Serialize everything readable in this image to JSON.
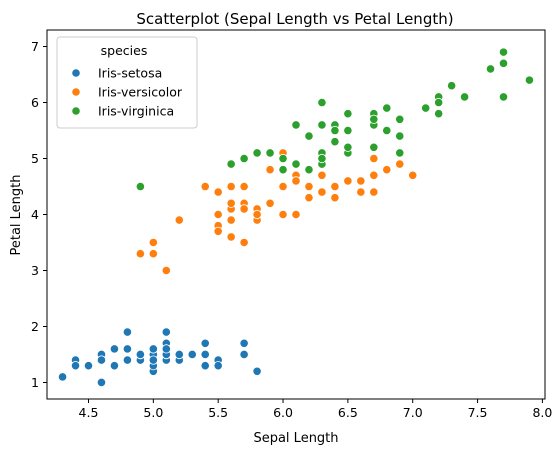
{
  "chart_data": {
    "type": "scatter",
    "title": "Scatterplot (Sepal Length vs Petal Length)",
    "xlabel": "Sepal Length",
    "ylabel": "Petal Length",
    "xlim": [
      4.18,
      8.02
    ],
    "ylim": [
      0.705,
      7.295
    ],
    "xticks": [
      4.5,
      5.0,
      5.5,
      6.0,
      6.5,
      7.0,
      7.5,
      8.0
    ],
    "xtick_labels": [
      "4.5",
      "5.0",
      "5.5",
      "6.0",
      "6.5",
      "7.0",
      "7.5",
      "8.0"
    ],
    "yticks": [
      1,
      2,
      3,
      4,
      5,
      6,
      7
    ],
    "ytick_labels": [
      "1",
      "2",
      "3",
      "4",
      "5",
      "6",
      "7"
    ],
    "grid": false,
    "legend": {
      "title": "species",
      "placement": "top-left"
    },
    "series": [
      {
        "name": "Iris-setosa",
        "color": "#1f77b4",
        "points": [
          [
            5.1,
            1.4
          ],
          [
            4.9,
            1.4
          ],
          [
            4.7,
            1.3
          ],
          [
            4.6,
            1.5
          ],
          [
            5.0,
            1.4
          ],
          [
            5.4,
            1.7
          ],
          [
            4.6,
            1.4
          ],
          [
            5.0,
            1.5
          ],
          [
            4.4,
            1.4
          ],
          [
            4.9,
            1.5
          ],
          [
            5.4,
            1.5
          ],
          [
            4.8,
            1.6
          ],
          [
            4.8,
            1.4
          ],
          [
            4.3,
            1.1
          ],
          [
            5.8,
            1.2
          ],
          [
            5.7,
            1.5
          ],
          [
            5.4,
            1.3
          ],
          [
            5.1,
            1.4
          ],
          [
            5.7,
            1.7
          ],
          [
            5.1,
            1.5
          ],
          [
            5.4,
            1.7
          ],
          [
            5.1,
            1.5
          ],
          [
            4.6,
            1.0
          ],
          [
            5.1,
            1.7
          ],
          [
            4.8,
            1.9
          ],
          [
            5.0,
            1.6
          ],
          [
            5.0,
            1.6
          ],
          [
            5.2,
            1.5
          ],
          [
            5.2,
            1.4
          ],
          [
            4.7,
            1.6
          ],
          [
            4.8,
            1.6
          ],
          [
            5.4,
            1.5
          ],
          [
            5.2,
            1.5
          ],
          [
            5.5,
            1.4
          ],
          [
            4.9,
            1.5
          ],
          [
            5.0,
            1.2
          ],
          [
            5.5,
            1.3
          ],
          [
            4.9,
            1.5
          ],
          [
            4.4,
            1.3
          ],
          [
            5.1,
            1.5
          ],
          [
            5.0,
            1.3
          ],
          [
            4.5,
            1.3
          ],
          [
            4.4,
            1.3
          ],
          [
            5.0,
            1.6
          ],
          [
            5.1,
            1.9
          ],
          [
            4.8,
            1.4
          ],
          [
            5.1,
            1.6
          ],
          [
            4.6,
            1.4
          ],
          [
            5.3,
            1.5
          ],
          [
            5.0,
            1.4
          ]
        ]
      },
      {
        "name": "Iris-versicolor",
        "color": "#ff7f0e",
        "points": [
          [
            7.0,
            4.7
          ],
          [
            6.4,
            4.5
          ],
          [
            6.9,
            4.9
          ],
          [
            5.5,
            4.0
          ],
          [
            6.5,
            4.6
          ],
          [
            5.7,
            4.5
          ],
          [
            6.3,
            4.7
          ],
          [
            4.9,
            3.3
          ],
          [
            6.6,
            4.6
          ],
          [
            5.2,
            3.9
          ],
          [
            5.0,
            3.5
          ],
          [
            5.9,
            4.2
          ],
          [
            6.0,
            4.0
          ],
          [
            6.1,
            4.7
          ],
          [
            5.6,
            3.6
          ],
          [
            6.7,
            4.4
          ],
          [
            5.6,
            4.5
          ],
          [
            5.8,
            4.1
          ],
          [
            6.2,
            4.5
          ],
          [
            5.6,
            3.9
          ],
          [
            5.9,
            4.8
          ],
          [
            6.1,
            4.0
          ],
          [
            6.3,
            4.9
          ],
          [
            6.1,
            4.7
          ],
          [
            6.4,
            4.3
          ],
          [
            6.6,
            4.4
          ],
          [
            6.8,
            4.8
          ],
          [
            6.7,
            5.0
          ],
          [
            6.0,
            4.5
          ],
          [
            5.7,
            3.5
          ],
          [
            5.5,
            3.8
          ],
          [
            5.5,
            3.7
          ],
          [
            5.8,
            3.9
          ],
          [
            6.0,
            5.1
          ],
          [
            5.4,
            4.5
          ],
          [
            6.0,
            4.5
          ],
          [
            6.7,
            4.7
          ],
          [
            6.3,
            4.4
          ],
          [
            5.6,
            4.1
          ],
          [
            5.5,
            4.0
          ],
          [
            5.5,
            4.4
          ],
          [
            6.1,
            4.6
          ],
          [
            5.8,
            4.0
          ],
          [
            5.0,
            3.3
          ],
          [
            5.6,
            4.2
          ],
          [
            5.7,
            4.2
          ],
          [
            5.7,
            4.2
          ],
          [
            6.2,
            4.3
          ],
          [
            5.1,
            3.0
          ],
          [
            5.7,
            4.1
          ]
        ]
      },
      {
        "name": "Iris-virginica",
        "color": "#2ca02c",
        "points": [
          [
            6.3,
            6.0
          ],
          [
            5.8,
            5.1
          ],
          [
            7.1,
            5.9
          ],
          [
            6.3,
            5.6
          ],
          [
            6.5,
            5.8
          ],
          [
            7.6,
            6.6
          ],
          [
            4.9,
            4.5
          ],
          [
            7.3,
            6.3
          ],
          [
            6.7,
            5.8
          ],
          [
            7.2,
            6.1
          ],
          [
            6.5,
            5.1
          ],
          [
            6.4,
            5.3
          ],
          [
            6.8,
            5.5
          ],
          [
            5.7,
            5.0
          ],
          [
            5.8,
            5.1
          ],
          [
            6.4,
            5.3
          ],
          [
            6.5,
            5.5
          ],
          [
            7.7,
            6.7
          ],
          [
            7.7,
            6.9
          ],
          [
            6.0,
            5.0
          ],
          [
            6.9,
            5.7
          ],
          [
            5.6,
            4.9
          ],
          [
            7.7,
            6.7
          ],
          [
            6.3,
            4.9
          ],
          [
            6.7,
            5.7
          ],
          [
            7.2,
            6.0
          ],
          [
            6.2,
            4.8
          ],
          [
            6.1,
            4.9
          ],
          [
            6.4,
            5.6
          ],
          [
            7.2,
            5.8
          ],
          [
            7.4,
            6.1
          ],
          [
            7.9,
            6.4
          ],
          [
            6.4,
            5.6
          ],
          [
            6.3,
            5.1
          ],
          [
            6.1,
            5.6
          ],
          [
            7.7,
            6.1
          ],
          [
            6.3,
            5.6
          ],
          [
            6.4,
            5.5
          ],
          [
            6.0,
            4.8
          ],
          [
            6.9,
            5.4
          ],
          [
            6.7,
            5.6
          ],
          [
            6.9,
            5.1
          ],
          [
            5.8,
            5.1
          ],
          [
            6.8,
            5.9
          ],
          [
            6.7,
            5.7
          ],
          [
            6.7,
            5.2
          ],
          [
            6.3,
            5.0
          ],
          [
            6.5,
            5.2
          ],
          [
            6.2,
            5.4
          ],
          [
            5.9,
            5.1
          ]
        ]
      }
    ]
  }
}
